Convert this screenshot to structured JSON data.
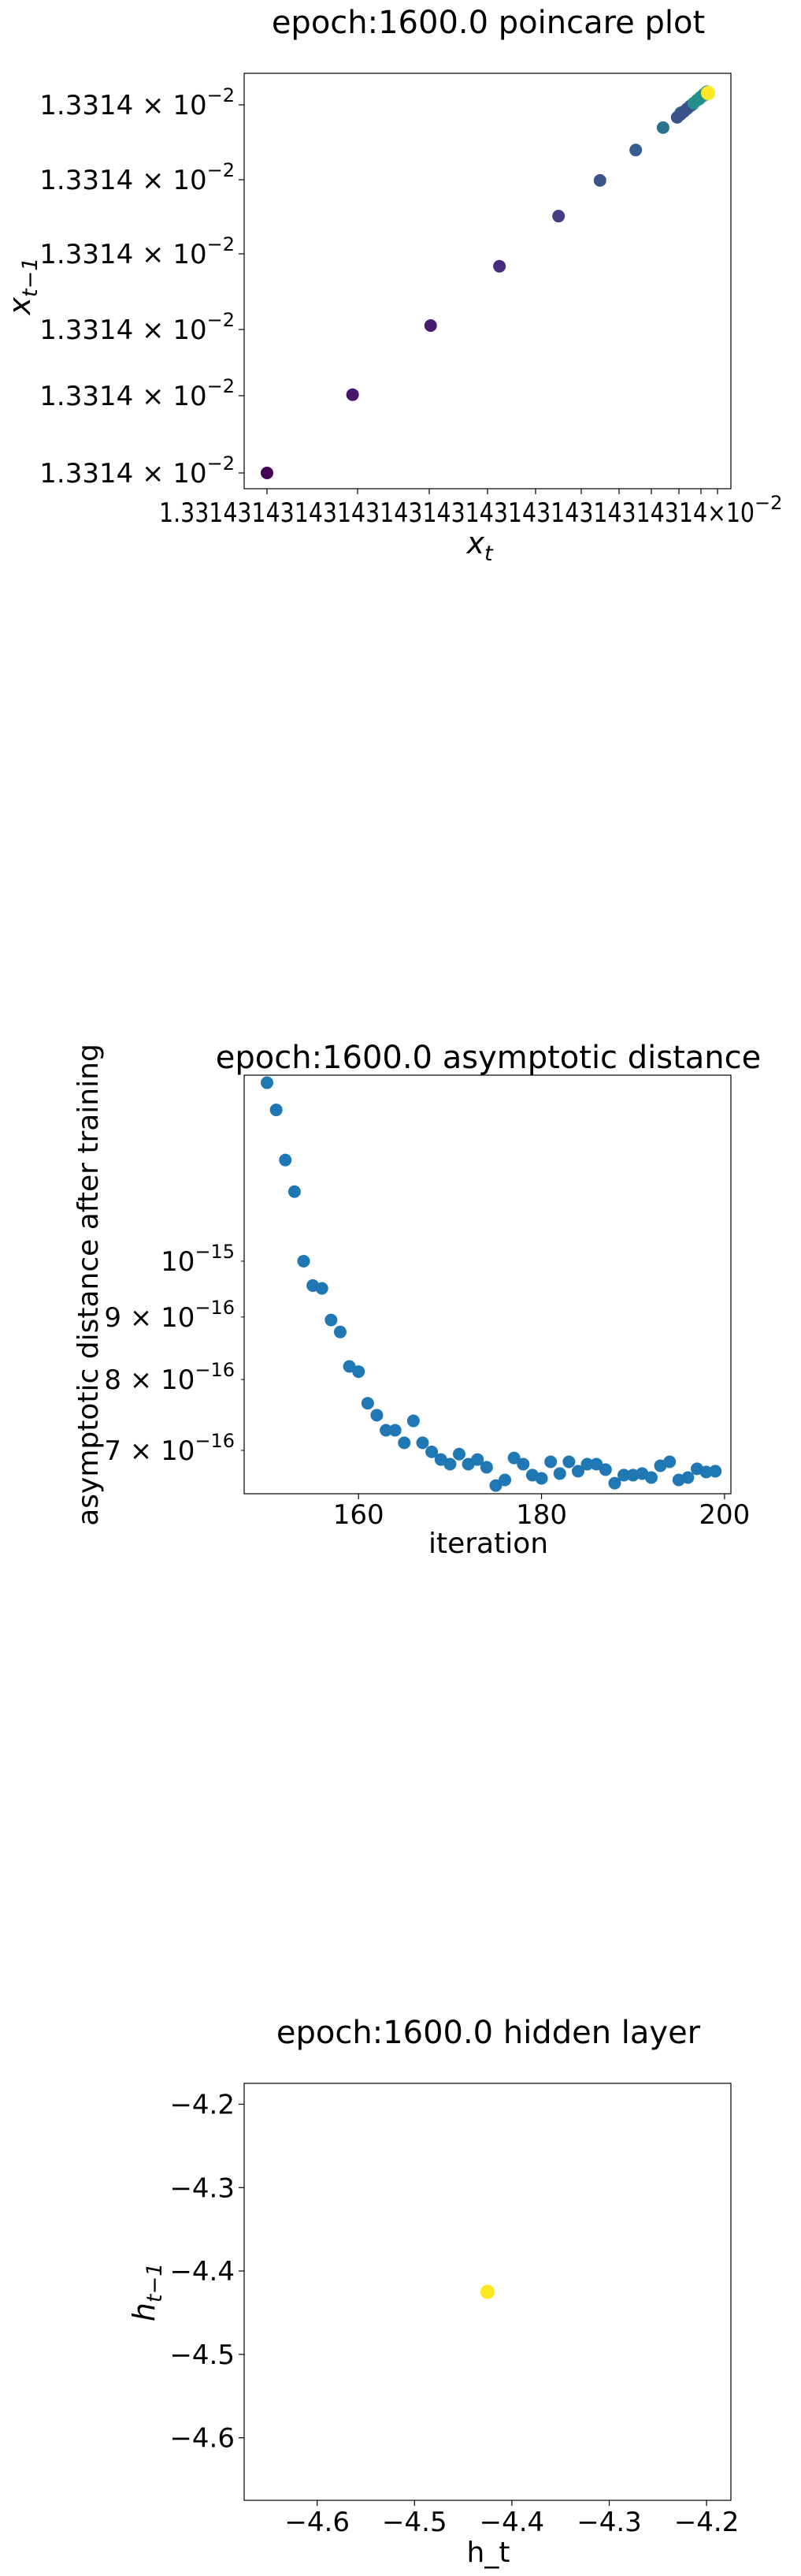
{
  "chart_data": [
    {
      "type": "scatter",
      "title": "epoch:1600.0 poincare plot",
      "xlabel_main": "x",
      "xlabel_sub": "t",
      "ylabel_main": "x",
      "ylabel_sub": "t−1",
      "ytick_label": "1.3314 × 10⁻²",
      "xtick_overlap_text": "1.331431431431431431431431431431431431431×10⁻²",
      "colormap": "viridis",
      "note": "data values all ≈ 1.3314e-2; shown as relative positions 0..1 within the axis",
      "x": [
        0.0,
        0.194,
        0.371,
        0.527,
        0.661,
        0.755,
        0.836,
        0.898,
        0.938,
        0.965,
        0.98,
        0.991,
        1.0
      ],
      "y": [
        0.0,
        0.206,
        0.388,
        0.544,
        0.676,
        0.77,
        0.85,
        0.909,
        0.948,
        0.97,
        0.984,
        0.993,
        1.0
      ],
      "colors": [
        "#440154",
        "#481467",
        "#471b6e",
        "#472d7b",
        "#433e85",
        "#3b528b",
        "#365d8d",
        "#2c728e",
        "#26828e",
        "#21918c",
        "#27ad81",
        "#5ec962",
        "#fde725"
      ]
    },
    {
      "type": "scatter",
      "title": "epoch:1600.0 asymptotic distance",
      "xlabel": "iteration",
      "ylabel": "asymptotic distance after training",
      "yscale": "log",
      "xticks": [
        160,
        180,
        200
      ],
      "xtick_labels": [
        "160",
        "180",
        "200"
      ],
      "yticks": [
        1e-15,
        9e-16,
        8e-16,
        7e-16
      ],
      "ytick_labels": [
        {
          "base": "10",
          "exp": "−15",
          "prefix": ""
        },
        {
          "base": "10",
          "exp": "−16",
          "prefix": "9 × "
        },
        {
          "base": "10",
          "exp": "−16",
          "prefix": "8 × "
        },
        {
          "base": "10",
          "exp": "−16",
          "prefix": "7 × "
        }
      ],
      "ylim": [
        6.45e-16,
        1.42e-15
      ],
      "xlim": [
        147.5,
        200.7
      ],
      "color": "#1f77b4",
      "x": [
        150,
        151,
        152,
        153,
        154,
        155,
        156,
        157,
        158,
        159,
        160,
        161,
        162,
        163,
        164,
        165,
        166,
        167,
        168,
        169,
        170,
        171,
        172,
        173,
        174,
        175,
        176,
        177,
        178,
        179,
        180,
        181,
        182,
        183,
        184,
        185,
        186,
        187,
        188,
        189,
        190,
        191,
        192,
        193,
        194,
        195,
        196,
        197,
        198,
        199
      ],
      "y": [
        1.4e-15,
        1.33e-15,
        1.21e-15,
        1.14e-15,
        1e-15,
        9.55e-16,
        9.5e-16,
        8.95e-16,
        8.75e-16,
        8.2e-16,
        8.12e-16,
        7.65e-16,
        7.48e-16,
        7.27e-16,
        7.27e-16,
        7.1e-16,
        7.4e-16,
        7.1e-16,
        6.98e-16,
        6.88e-16,
        6.82e-16,
        6.95e-16,
        6.82e-16,
        6.88e-16,
        6.78e-16,
        6.55e-16,
        6.62e-16,
        6.9e-16,
        6.82e-16,
        6.68e-16,
        6.64e-16,
        6.85e-16,
        6.7e-16,
        6.85e-16,
        6.73e-16,
        6.82e-16,
        6.82e-16,
        6.75e-16,
        6.58e-16,
        6.68e-16,
        6.68e-16,
        6.7e-16,
        6.65e-16,
        6.8e-16,
        6.85e-16,
        6.62e-16,
        6.65e-16,
        6.76e-16,
        6.72e-16,
        6.73e-16
      ]
    },
    {
      "type": "scatter",
      "title": "epoch:1600.0 hidden layer",
      "xlabel": "h_t",
      "ylabel_main": "h",
      "ylabel_sub": "t−1",
      "xlim": [
        -4.675,
        -4.175
      ],
      "ylim": [
        -4.675,
        -4.175
      ],
      "xticks": [
        -4.6,
        -4.5,
        -4.4,
        -4.3,
        -4.2
      ],
      "xtick_labels": [
        "−4.6",
        "−4.5",
        "−4.4",
        "−4.3",
        "−4.2"
      ],
      "yticks": [
        -4.2,
        -4.3,
        -4.4,
        -4.5,
        -4.6
      ],
      "ytick_labels": [
        "−4.2",
        "−4.3",
        "−4.4",
        "−4.5",
        "−4.6"
      ],
      "x": [
        -4.425
      ],
      "y": [
        -4.425
      ],
      "color": "#fde725"
    }
  ]
}
